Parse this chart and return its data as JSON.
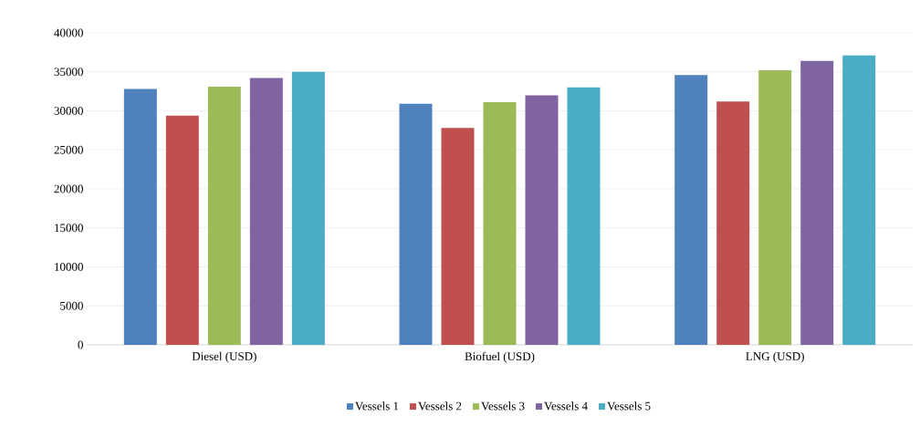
{
  "chart_data": {
    "type": "bar",
    "categories": [
      "Diesel (USD)",
      "Biofuel (USD)",
      "LNG (USD)"
    ],
    "series": [
      {
        "name": "Vessels 1",
        "color": "#4f81bd",
        "values": [
          32800,
          30900,
          34600
        ]
      },
      {
        "name": "Vessels 2",
        "color": "#c0504d",
        "values": [
          29400,
          27800,
          31200
        ]
      },
      {
        "name": "Vessels 3",
        "color": "#9bbb59",
        "values": [
          33100,
          31100,
          35200
        ]
      },
      {
        "name": "Vessels 4",
        "color": "#8064a2",
        "values": [
          34200,
          32000,
          36400
        ]
      },
      {
        "name": "Vessels 5",
        "color": "#4bacc6",
        "values": [
          35000,
          33000,
          37100
        ]
      }
    ],
    "ylim": [
      0,
      40000
    ],
    "yticks": [
      0,
      5000,
      10000,
      15000,
      20000,
      25000,
      30000,
      35000,
      40000
    ],
    "grid": "y",
    "legend": "bottom"
  }
}
